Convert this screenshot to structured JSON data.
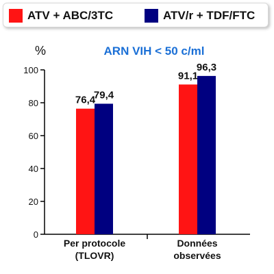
{
  "chart_data": {
    "type": "bar",
    "title": "ARN VIH < 50 c/ml",
    "ylabel": "%",
    "xlabel": "",
    "ylim": [
      0,
      100
    ],
    "yticks": [
      0,
      20,
      40,
      60,
      80,
      100
    ],
    "grid": false,
    "legend_position": "top",
    "categories": [
      "Per protocole\n(TLOVR)",
      "Données\nobservées"
    ],
    "series": [
      {
        "name": "ATV + ABC/3TC",
        "color": "#ff1414",
        "values": [
          76.4,
          91.1
        ],
        "labels": [
          "76,4",
          "91,1"
        ]
      },
      {
        "name": "ATV/r + TDF/FTC",
        "color": "#000080",
        "values": [
          79.4,
          96.3
        ],
        "labels": [
          "79,4",
          "96,3"
        ]
      }
    ],
    "title_color": "#1a6fd6"
  }
}
